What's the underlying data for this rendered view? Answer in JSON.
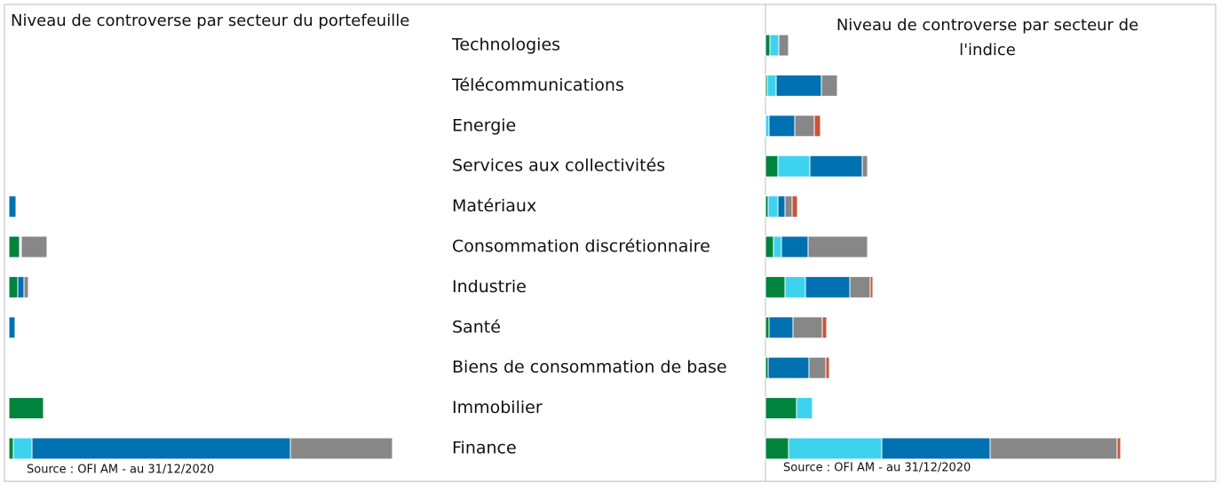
{
  "chart_data": [
    {
      "type": "stacked-barh",
      "title": "Niveau de controverse par secteur du portefeuille",
      "note": "Source : OFI AM - au 31/12/2020",
      "categories": [
        "Technologies",
        "Télécommunications",
        "Energie",
        "Services aux collectivités",
        "Matériaux",
        "Consommation discrétionnaire",
        "Industrie",
        "Santé",
        "Biens de consommation de base",
        "Immobilier",
        "Finance"
      ],
      "xlim": [
        0,
        432
      ],
      "series": [
        {
          "color": "#00843d",
          "values": [
            0,
            0,
            0,
            0,
            0,
            12,
            10,
            0,
            0,
            39,
            5
          ]
        },
        {
          "color": "#3dd3ef",
          "values": [
            0,
            0,
            0,
            0,
            0,
            1,
            0,
            0,
            0,
            0,
            21
          ]
        },
        {
          "color": "#0071b0",
          "values": [
            0,
            0,
            0,
            0,
            8,
            1,
            7,
            7,
            0,
            0,
            291
          ]
        },
        {
          "color": "#878787",
          "values": [
            0,
            0,
            0,
            0,
            0,
            29,
            5,
            0,
            0,
            0,
            115
          ]
        },
        {
          "color": "#c8553a",
          "values": [
            0,
            0,
            0,
            0,
            0,
            0,
            0,
            0,
            0,
            0,
            0
          ]
        }
      ]
    },
    {
      "type": "stacked-barh",
      "title": "Niveau de controverse par secteur de l'indice",
      "note": "Source : OFI AM - au 31/12/2020",
      "xlim": [
        0,
        432
      ],
      "series": [
        {
          "color": "#00843d",
          "values": [
            5,
            2,
            0,
            14,
            3,
            9,
            22,
            4,
            3,
            35,
            26
          ]
        },
        {
          "color": "#3dd3ef",
          "values": [
            10,
            10,
            4,
            36,
            11,
            9,
            23,
            0,
            0,
            18,
            105
          ]
        },
        {
          "color": "#0071b0",
          "values": [
            0,
            51,
            29,
            59,
            8,
            30,
            50,
            27,
            46,
            0,
            122
          ]
        },
        {
          "color": "#878787",
          "values": [
            11,
            18,
            22,
            6,
            8,
            67,
            23,
            33,
            19,
            0,
            143
          ]
        },
        {
          "color": "#c8553a",
          "values": [
            0,
            0,
            7,
            0,
            6,
            0,
            3,
            5,
            4,
            0,
            4
          ]
        }
      ]
    }
  ]
}
